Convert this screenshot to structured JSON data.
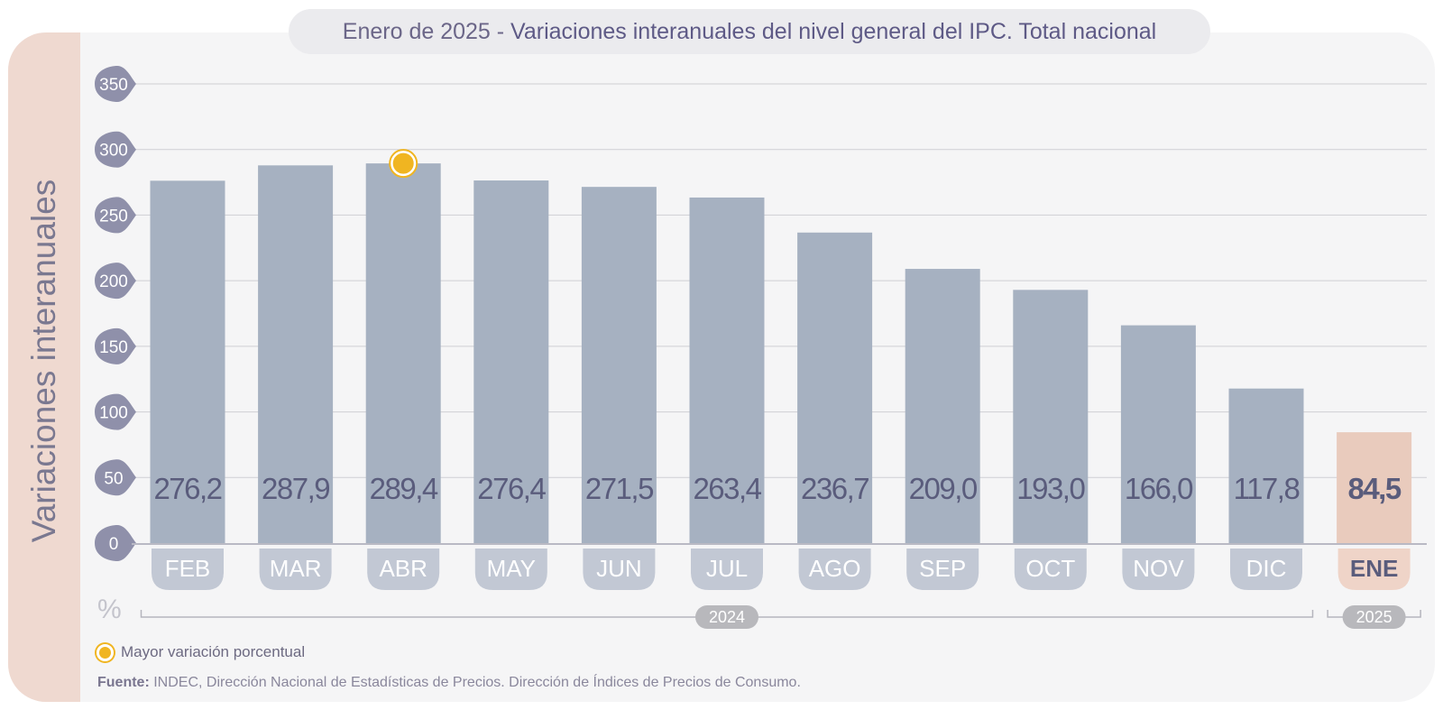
{
  "title": {
    "prefix": "Enero de 2025",
    "separator": " - ",
    "main": "Variaciones interanuales del nivel general del IPC. Total nacional"
  },
  "legend": {
    "label": "Mayor variación porcentual"
  },
  "source": {
    "label": "Fuente:",
    "text": " INDEC, Dirección Nacional de Estadísticas de Precios. Dirección de Índices de Precios de Consumo."
  },
  "colors": {
    "bar": "#a6b1c1",
    "bar_highlight": "#e9cbbd",
    "month_pill": "#c2c8d4",
    "month_pill_highlight": "#efd4c8",
    "value_text": "#5a5c7c",
    "tick_blob": "#8f90aa",
    "marker": "#f0b521",
    "year_pill": "#b8b8bc",
    "gridline": "#cfcfd3"
  },
  "chart_data": {
    "type": "bar",
    "title": "Variaciones interanuales del nivel general del IPC. Total nacional",
    "ylabel": "Variaciones interanuales",
    "yunit": "%",
    "ylim": [
      0,
      350
    ],
    "yticks": [
      "0",
      "50",
      "100",
      "150",
      "200",
      "250",
      "300",
      "350"
    ],
    "grid": true,
    "categories": [
      "FEB",
      "MAR",
      "ABR",
      "MAY",
      "JUN",
      "JUL",
      "AGO",
      "SEP",
      "OCT",
      "NOV",
      "DIC",
      "ENE"
    ],
    "values": [
      276.2,
      287.9,
      289.4,
      276.4,
      271.5,
      263.4,
      236.7,
      209.0,
      193.0,
      166.0,
      117.8,
      84.5
    ],
    "value_labels": [
      "276,2",
      "287,9",
      "289,4",
      "276,4",
      "271,5",
      "263,4",
      "236,7",
      "209,0",
      "193,0",
      "166,0",
      "117,8",
      "84,5"
    ],
    "highlight_index": 11,
    "max_marker_index": 2,
    "year_groups": [
      {
        "label": "2024",
        "from": 0,
        "to": 10
      },
      {
        "label": "2025",
        "from": 11,
        "to": 11
      }
    ]
  }
}
